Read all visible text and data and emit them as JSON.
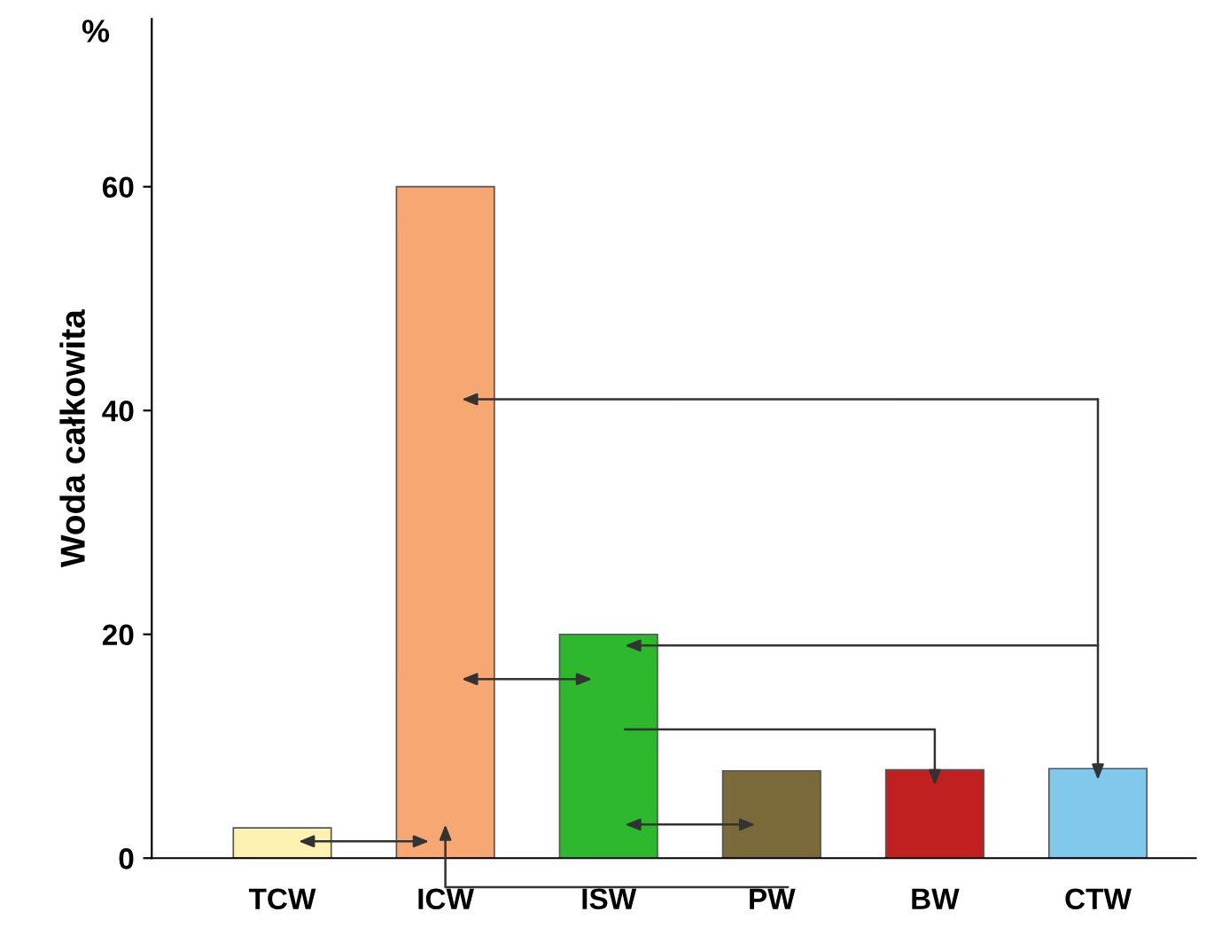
{
  "chart_data": {
    "type": "bar",
    "ylabel": "Woda całkowita",
    "categories": [
      "TCW",
      "ICW",
      "ISW",
      "PW",
      "BW",
      "CTW"
    ],
    "values": [
      2.7,
      60,
      20,
      7.8,
      7.9,
      8
    ],
    "colors": [
      "#fdf2b0",
      "#f7a872",
      "#2eb82e",
      "#7a6a3a",
      "#c0201f",
      "#80c8ec"
    ],
    "ylim": [
      0,
      75
    ],
    "yticks": [
      0,
      20,
      40,
      60
    ],
    "grid": false,
    "annotations": [
      "%"
    ]
  }
}
